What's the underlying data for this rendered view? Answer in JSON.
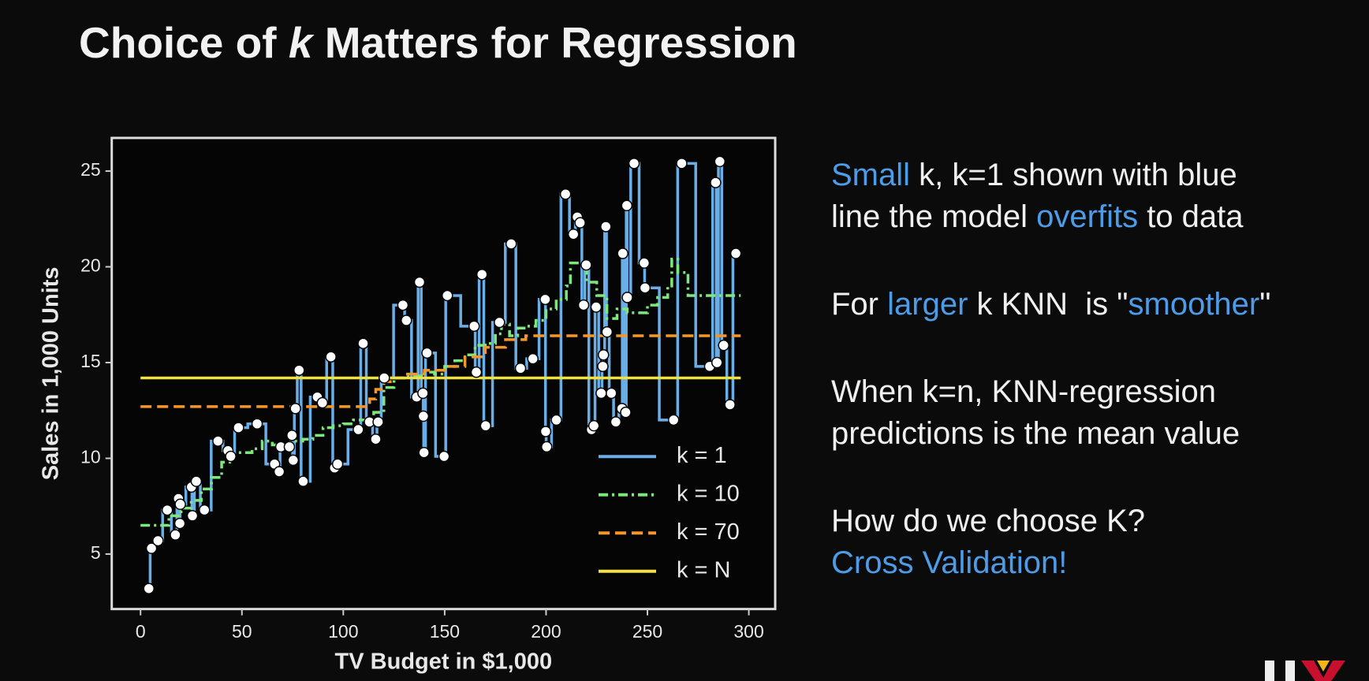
{
  "title": [
    {
      "text": "Choice of "
    },
    {
      "text": "k",
      "italic": true
    },
    {
      "text": " Matters for Regression"
    }
  ],
  "notes": [
    [
      [
        {
          "text": "Small",
          "highlight": true
        },
        {
          "text": " k, k=1 shown with blue"
        }
      ],
      [
        {
          "text": "line the model "
        },
        {
          "text": "overfits",
          "highlight": true
        },
        {
          "text": " to data"
        }
      ]
    ],
    [
      [
        {
          "text": "For "
        },
        {
          "text": "larger",
          "highlight": true
        },
        {
          "text": " k KNN  is \""
        },
        {
          "text": "smoother",
          "highlight": true
        },
        {
          "text": "\""
        }
      ]
    ],
    [
      [
        {
          "text": "When k=n, KNN-regression"
        }
      ],
      [
        {
          "text": "predictions is the mean value"
        }
      ]
    ],
    [
      [
        {
          "text": "How do we choose K?"
        }
      ],
      [
        {
          "text": "Cross Validation!",
          "highlight": true
        }
      ]
    ]
  ],
  "chart_data": {
    "type": "line",
    "xlabel": "TV Budget in $1,000",
    "ylabel": "Sales in 1,000 Units",
    "xlim": [
      -14.2,
      313
    ],
    "ylim": [
      2.13,
      26.73
    ],
    "xticks": [
      0,
      50,
      100,
      150,
      200,
      250,
      300
    ],
    "yticks": [
      5,
      10,
      15,
      20,
      25
    ],
    "legend": "lower right",
    "step": "mid",
    "points": {
      "color": "#ffffff",
      "x": [
        4.1,
        5.4,
        8.6,
        13.2,
        17.2,
        18.7,
        19.4,
        19.6,
        25.1,
        25.6,
        27.5,
        31.5,
        38.2,
        43.1,
        44.5,
        48.3,
        57.5,
        66.1,
        68.4,
        69.2,
        73.4,
        74.7,
        75.3,
        76.4,
        78.2,
        80.2,
        87.2,
        89.7,
        93.9,
        95.7,
        97.2,
        107.4,
        109.8,
        112.9,
        116,
        117.2,
        120.2,
        129.4,
        131.1,
        136.2,
        137.6,
        139.3,
        139.5,
        139.8,
        141.3,
        149.7,
        151.3,
        164.5,
        165.6,
        168.4,
        170.2,
        177,
        182.8,
        187.4,
        193.5,
        199.6,
        199.8,
        200.3,
        205.1,
        209.6,
        213.5,
        215.4,
        216.8,
        218.5,
        219.8,
        222.4,
        223.6,
        224.7,
        227.2,
        228,
        228.3,
        229.5,
        230.1,
        232.2,
        234.4,
        237.4,
        237.8,
        239.3,
        239.8,
        240.1,
        243.4,
        248.4,
        248.8,
        262.9,
        266.9,
        280.7,
        283.6,
        284.3,
        285.7,
        287.6,
        290.7,
        293.6
      ],
      "y": [
        3.2,
        5.3,
        5.7,
        7.3,
        6.0,
        7.9,
        6.6,
        7.6,
        8.5,
        7.0,
        8.8,
        7.3,
        10.9,
        10.4,
        10.1,
        11.6,
        11.8,
        9.7,
        9.3,
        10.6,
        10.6,
        11.2,
        9.9,
        12.6,
        14.6,
        8.8,
        13.2,
        12.9,
        15.3,
        9.5,
        9.7,
        11.5,
        16.0,
        11.9,
        11.0,
        11.9,
        14.2,
        18.0,
        17.2,
        13.2,
        19.2,
        13.4,
        12.2,
        10.3,
        15.5,
        10.1,
        18.5,
        16.9,
        14.5,
        19.6,
        11.7,
        17.1,
        21.2,
        14.7,
        15.2,
        18.3,
        11.4,
        10.6,
        12.0,
        23.8,
        21.7,
        22.6,
        22.3,
        18.0,
        20.1,
        11.5,
        11.7,
        17.9,
        13.4,
        14.8,
        15.4,
        22.1,
        16.6,
        13.4,
        11.9,
        12.6,
        20.7,
        12.4,
        23.2,
        18.4,
        25.4,
        20.2,
        18.9,
        12.0,
        25.4,
        14.8,
        24.4,
        15.0,
        25.5,
        15.9,
        12.8,
        20.7
      ]
    },
    "series": [
      {
        "name": "k = 1",
        "color": "#6aaee8",
        "dash": "solid",
        "x": [
          4.1,
          5.4,
          8.6,
          13.2,
          17.2,
          18.7,
          19.4,
          19.6,
          25.1,
          25.6,
          27.5,
          31.5,
          38.2,
          43.1,
          44.5,
          48.3,
          57.5,
          66.1,
          68.4,
          69.2,
          73.4,
          74.7,
          75.3,
          76.4,
          78.2,
          80.2,
          87.2,
          89.7,
          93.9,
          95.7,
          97.2,
          107.4,
          109.8,
          112.9,
          116,
          117.2,
          120.2,
          129.4,
          131.1,
          136.2,
          137.6,
          139.3,
          139.5,
          139.8,
          141.3,
          149.7,
          151.3,
          164.5,
          165.6,
          168.4,
          170.2,
          177,
          182.8,
          187.4,
          193.5,
          199.6,
          199.8,
          200.3,
          205.1,
          209.6,
          213.5,
          215.4,
          216.8,
          218.5,
          219.8,
          222.4,
          223.6,
          224.7,
          227.2,
          228,
          228.3,
          229.5,
          230.1,
          232.2,
          234.4,
          237.4,
          237.8,
          239.3,
          239.8,
          240.1,
          243.4,
          248.4,
          248.8,
          262.9,
          266.9,
          280.7,
          283.6,
          284.3,
          285.7,
          287.6,
          290.7,
          293.6
        ],
        "values": [
          3.2,
          5.3,
          5.7,
          7.3,
          6.0,
          7.9,
          6.6,
          7.6,
          8.5,
          7.0,
          8.8,
          7.3,
          10.9,
          10.4,
          10.1,
          11.6,
          11.8,
          9.7,
          9.3,
          10.6,
          10.6,
          11.2,
          9.9,
          12.6,
          14.6,
          8.8,
          13.2,
          12.9,
          15.3,
          9.5,
          9.7,
          11.5,
          16.0,
          11.9,
          11.0,
          11.9,
          14.2,
          18.0,
          17.2,
          13.2,
          19.2,
          13.4,
          12.2,
          10.3,
          15.5,
          10.1,
          18.5,
          16.9,
          14.5,
          19.6,
          11.7,
          17.1,
          21.2,
          14.7,
          15.2,
          18.3,
          11.4,
          10.6,
          12.0,
          23.8,
          21.7,
          22.6,
          22.3,
          18.0,
          20.1,
          11.5,
          11.7,
          17.9,
          13.4,
          14.8,
          15.4,
          22.1,
          16.6,
          13.4,
          11.9,
          12.6,
          20.7,
          12.4,
          23.2,
          18.4,
          25.4,
          20.2,
          18.9,
          12.0,
          25.4,
          14.8,
          24.4,
          15.0,
          25.5,
          15.9,
          12.8,
          20.7
        ]
      },
      {
        "name": "k = 10",
        "color": "#7ce87c",
        "dash": "dashdot",
        "x": [
          0,
          10,
          14,
          20,
          25,
          30,
          35,
          40,
          45,
          50,
          55,
          60,
          65,
          70,
          75,
          80,
          85,
          90,
          95,
          100,
          105,
          110,
          115,
          120,
          125,
          130,
          135,
          140,
          145,
          150,
          155,
          160,
          165,
          170,
          175,
          178,
          182,
          186,
          190,
          195,
          200,
          205,
          210,
          212,
          215,
          220,
          225,
          230,
          235,
          240,
          245,
          250,
          255,
          260,
          262,
          265,
          270,
          280,
          296
        ],
        "values": [
          6.5,
          6.5,
          7.0,
          7.4,
          7.8,
          8.4,
          9.0,
          9.8,
          10.3,
          10.3,
          10.5,
          10.9,
          10.7,
          10.6,
          10.9,
          11.0,
          11.2,
          11.6,
          11.7,
          11.8,
          12.0,
          12.0,
          12.4,
          13.7,
          14.2,
          14.3,
          14.3,
          14.5,
          14.4,
          14.8,
          15.1,
          15.4,
          15.9,
          16.0,
          16.5,
          17.0,
          16.4,
          16.8,
          16.9,
          17.2,
          17.8,
          18.3,
          19.0,
          20.2,
          20.2,
          19.2,
          18.5,
          17.3,
          17.8,
          17.6,
          17.6,
          18.0,
          18.4,
          19.0,
          20.4,
          19.7,
          18.5,
          18.5,
          18.5
        ]
      },
      {
        "name": "k = 70",
        "color": "#f5962a",
        "dash": "dashed",
        "x": [
          0,
          110,
          113,
          116,
          120,
          125,
          130,
          140,
          150,
          160,
          170,
          180,
          190,
          296
        ],
        "values": [
          12.7,
          12.7,
          13.1,
          13.6,
          14.0,
          14.2,
          14.4,
          14.6,
          14.8,
          15.3,
          15.8,
          16.2,
          16.4,
          16.4
        ]
      },
      {
        "name": "k = N",
        "color": "#f0e040",
        "dash": "solid",
        "x": [
          0,
          296
        ],
        "values": [
          14.2,
          14.2
        ]
      }
    ]
  }
}
